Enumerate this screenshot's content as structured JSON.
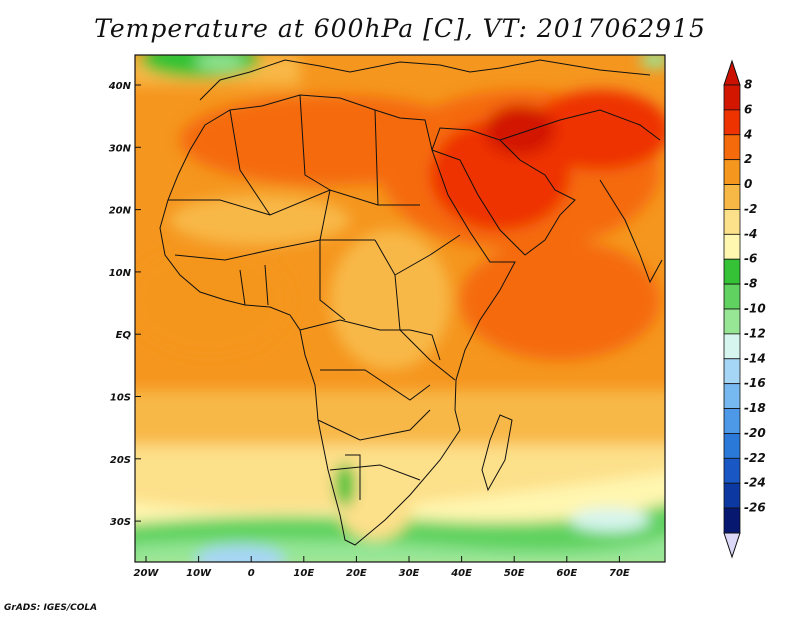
{
  "title": "Temperature at 600hPa [C], VT: 2017062915",
  "footer": "GrADS: IGES/COLA",
  "map": {
    "x_ticks": [
      "20W",
      "10W",
      "0",
      "10E",
      "20E",
      "30E",
      "40E",
      "50E",
      "60E",
      "70E"
    ],
    "y_ticks": [
      "40N",
      "30N",
      "20N",
      "10N",
      "EQ",
      "10S",
      "20S",
      "30S"
    ]
  },
  "colorbar": {
    "labels": [
      "8",
      "6",
      "4",
      "2",
      "0",
      "-2",
      "-4",
      "-6",
      "-8",
      "-10",
      "-12",
      "-14",
      "-16",
      "-18",
      "-20",
      "-22",
      "-24",
      "-26"
    ],
    "colors": [
      "#d21600",
      "#ee3300",
      "#f56a0a",
      "#f5961e",
      "#f8b846",
      "#fde08a",
      "#fff6b0",
      "#36c236",
      "#5fd25f",
      "#96e696",
      "#d6f5ee",
      "#a6d6f5",
      "#76b8f0",
      "#4e98e8",
      "#2a78d8",
      "#1958c4",
      "#0c38a2",
      "#071870"
    ],
    "top_arrow": "#cc1100",
    "bottom_arrow": "#dcd8f8"
  }
}
